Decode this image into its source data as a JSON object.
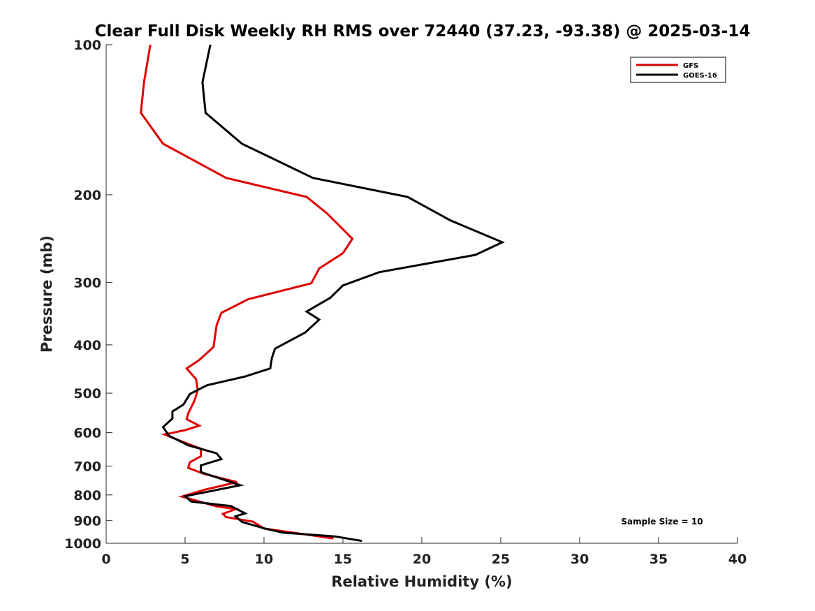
{
  "chart_data": {
    "type": "line",
    "title": "Clear Full Disk Weekly RH RMS over 72440 (37.23, -93.38) @ 2025-03-14",
    "xlabel": "Relative Humidity (%)",
    "ylabel": "Pressure (mb)",
    "xlim": [
      0,
      40
    ],
    "ylim": [
      1000,
      100
    ],
    "y_scale": "log",
    "grid": false,
    "legend_position": "top-right",
    "x_ticks": [
      "0",
      "5",
      "10",
      "15",
      "20",
      "25",
      "30",
      "35",
      "40"
    ],
    "y_ticks": [
      "100",
      "200",
      "300",
      "400",
      "500",
      "600",
      "700",
      "800",
      "900",
      "1000"
    ],
    "annotation": "Sample Size = 10",
    "series": [
      {
        "name": "GFS",
        "color": "#e00000",
        "points": [
          [
            2.8,
            100
          ],
          [
            2.4,
            119
          ],
          [
            2.2,
            137
          ],
          [
            3.6,
            158
          ],
          [
            7.6,
            185
          ],
          [
            12.7,
            202
          ],
          [
            14.0,
            218
          ],
          [
            15.6,
            245
          ],
          [
            15.0,
            262
          ],
          [
            13.5,
            281
          ],
          [
            13.0,
            301
          ],
          [
            9.0,
            324
          ],
          [
            7.3,
            345
          ],
          [
            7.0,
            365
          ],
          [
            6.8,
            404
          ],
          [
            5.9,
            429
          ],
          [
            5.1,
            446
          ],
          [
            5.7,
            469
          ],
          [
            5.8,
            493
          ],
          [
            5.6,
            517
          ],
          [
            5.2,
            549
          ],
          [
            5.1,
            564
          ],
          [
            5.9,
            581
          ],
          [
            5.0,
            593
          ],
          [
            3.7,
            605
          ],
          [
            4.9,
            627
          ],
          [
            6.0,
            646
          ],
          [
            6.0,
            669
          ],
          [
            5.3,
            688
          ],
          [
            5.2,
            706
          ],
          [
            6.2,
            726
          ],
          [
            8.3,
            754
          ],
          [
            6.3,
            780
          ],
          [
            4.8,
            806
          ],
          [
            6.9,
            842
          ],
          [
            8.2,
            854
          ],
          [
            7.4,
            873
          ],
          [
            7.6,
            886
          ],
          [
            9.3,
            905
          ],
          [
            10.0,
            934
          ],
          [
            14.4,
            978
          ]
        ]
      },
      {
        "name": "GOES-16",
        "color": "#000000",
        "points": [
          [
            6.6,
            100
          ],
          [
            6.1,
            119
          ],
          [
            6.3,
            137
          ],
          [
            8.6,
            158
          ],
          [
            13.1,
            185
          ],
          [
            19.1,
            202
          ],
          [
            21.8,
            225
          ],
          [
            25.1,
            249
          ],
          [
            23.4,
            264
          ],
          [
            17.3,
            286
          ],
          [
            15.0,
            304
          ],
          [
            14.2,
            322
          ],
          [
            12.7,
            343
          ],
          [
            13.5,
            356
          ],
          [
            12.6,
            378
          ],
          [
            10.7,
            407
          ],
          [
            10.5,
            425
          ],
          [
            10.4,
            446
          ],
          [
            8.8,
            463
          ],
          [
            6.4,
            482
          ],
          [
            5.3,
            502
          ],
          [
            4.9,
            527
          ],
          [
            4.2,
            544
          ],
          [
            4.2,
            562
          ],
          [
            3.6,
            585
          ],
          [
            4.0,
            609
          ],
          [
            5.2,
            636
          ],
          [
            7.0,
            660
          ],
          [
            7.3,
            678
          ],
          [
            6.0,
            698
          ],
          [
            6.0,
            720
          ],
          [
            8.5,
            765
          ],
          [
            5.0,
            805
          ],
          [
            5.4,
            825
          ],
          [
            7.9,
            842
          ],
          [
            8.8,
            871
          ],
          [
            8.2,
            883
          ],
          [
            8.6,
            906
          ],
          [
            10.1,
            935
          ],
          [
            11.2,
            952
          ],
          [
            14.5,
            969
          ],
          [
            16.2,
            989
          ]
        ]
      }
    ]
  }
}
